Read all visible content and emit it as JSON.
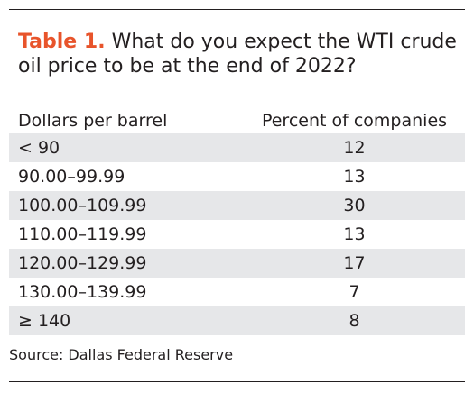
{
  "title": {
    "label": "Table 1.",
    "text": "What do you expect the WTI crude oil price to be at the end of 2022?"
  },
  "source": "Source: Dallas Federal Reserve",
  "chart_data": {
    "type": "table",
    "columns": [
      "Dollars per barrel",
      "Percent of companies"
    ],
    "rows": [
      {
        "range": "< 90",
        "percent": "12"
      },
      {
        "range": "90.00–99.99",
        "percent": "13"
      },
      {
        "range": "100.00–109.99",
        "percent": "30"
      },
      {
        "range": "110.00–119.99",
        "percent": "13"
      },
      {
        "range": "120.00–129.99",
        "percent": "17"
      },
      {
        "range": "130.00–139.99",
        "percent": "7"
      },
      {
        "range": "≥ 140",
        "percent": "8"
      }
    ]
  }
}
